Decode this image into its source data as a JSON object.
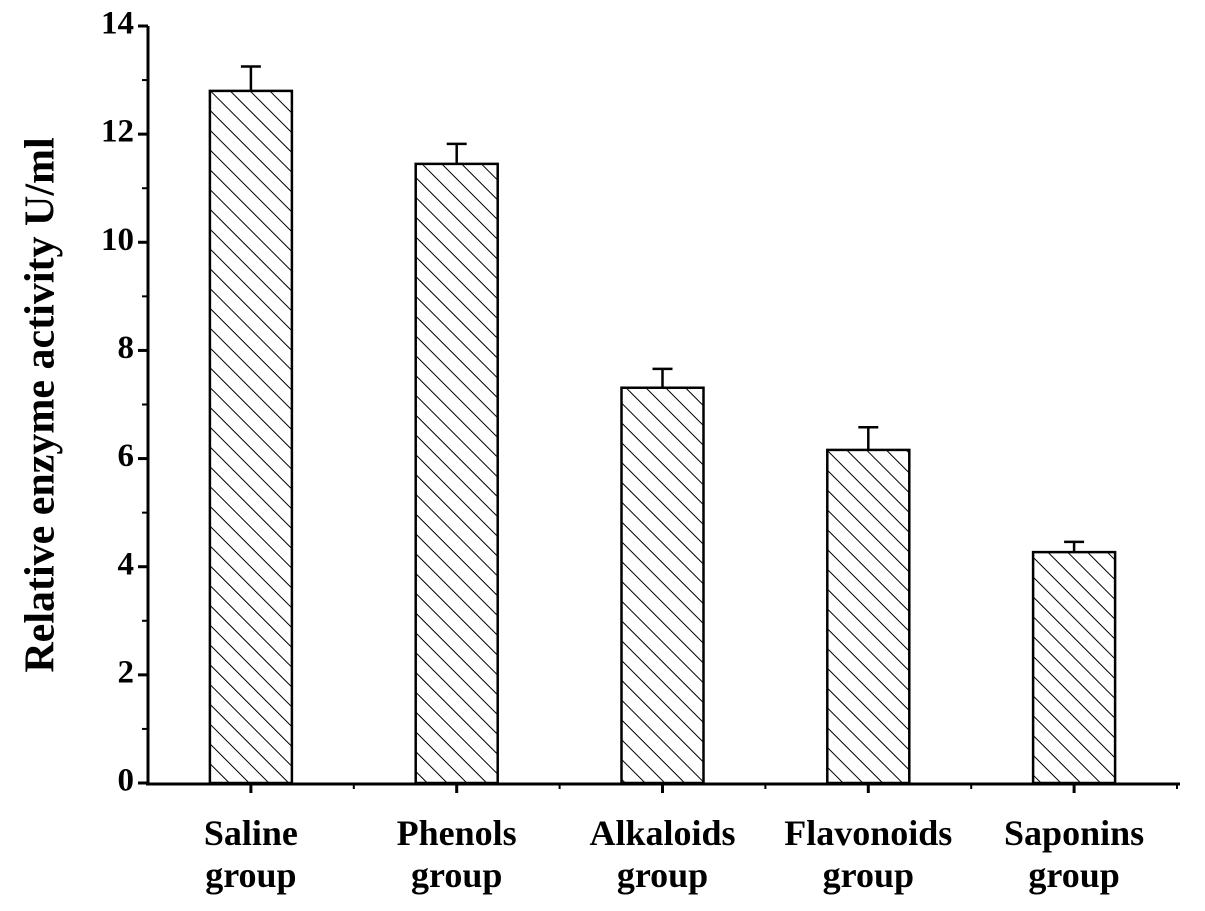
{
  "chart_data": {
    "type": "bar",
    "y_label": "Relative enzyme activity U/ml",
    "categories": [
      "Saline group",
      "Phenols group",
      "Alkaloids group",
      "Flavonoids group",
      "Saponins group"
    ],
    "values": [
      12.8,
      11.45,
      7.31,
      6.16,
      4.27
    ],
    "errors": [
      0.45,
      0.37,
      0.35,
      0.42,
      0.19
    ],
    "color": "#000000",
    "ylim": [
      0,
      14
    ],
    "yticks": [
      0,
      2,
      4,
      6,
      8,
      10,
      12,
      14
    ],
    "grid": false
  }
}
